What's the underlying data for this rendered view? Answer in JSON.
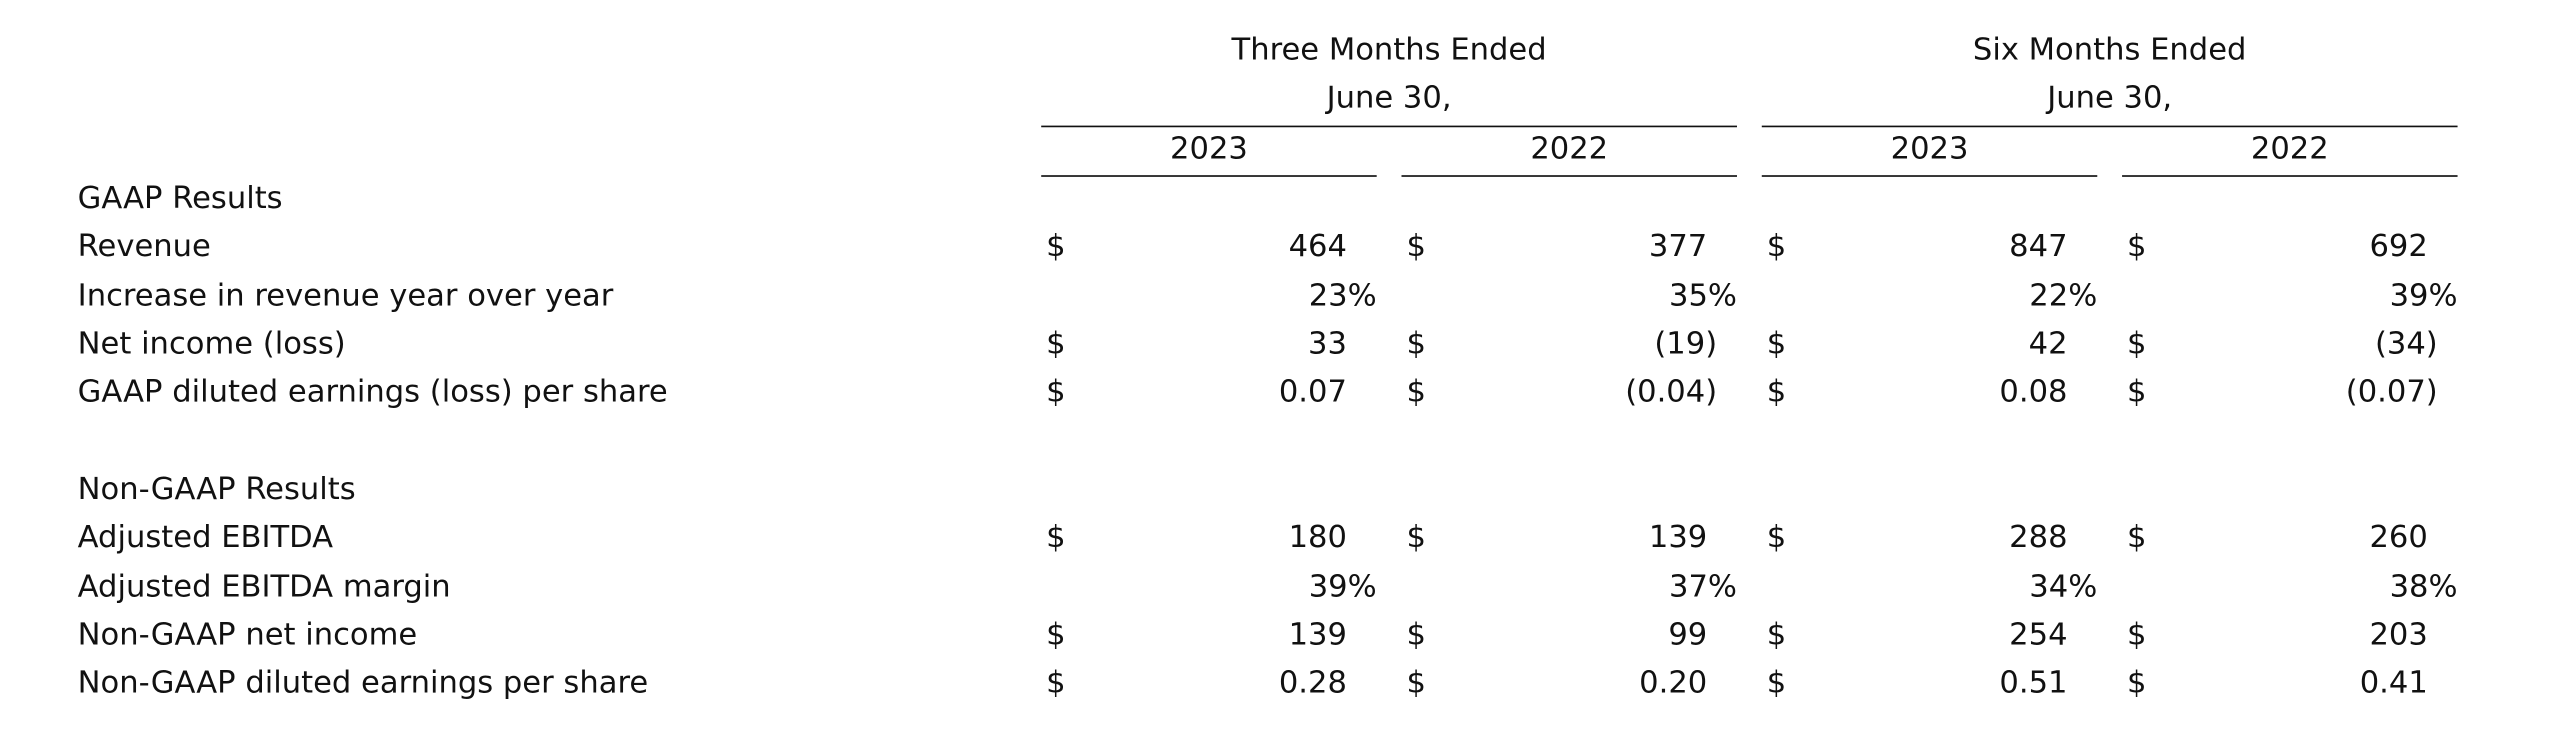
{
  "header": {
    "three_months_line1": "Three Months Ended",
    "three_months_line2": "June 30,",
    "six_months_line1": "Six Months Ended",
    "six_months_line2": "June 30,",
    "years": [
      "2023",
      "2022",
      "2023",
      "2022"
    ]
  },
  "sections": [
    {
      "title": "GAAP Results",
      "rows": [
        {
          "label": "Revenue",
          "cells": [
            {
              "dollar": "$",
              "value": "464"
            },
            {
              "dollar": "$",
              "value": "377"
            },
            {
              "dollar": "$",
              "value": "847"
            },
            {
              "dollar": "$",
              "value": "692"
            }
          ]
        },
        {
          "label": "Increase in revenue year over year",
          "cells": [
            {
              "dollar": "",
              "value": "23%"
            },
            {
              "dollar": "",
              "value": "35%"
            },
            {
              "dollar": "",
              "value": "22%"
            },
            {
              "dollar": "",
              "value": "39%"
            }
          ]
        },
        {
          "label": "Net income (loss)",
          "cells": [
            {
              "dollar": "$",
              "value": "33"
            },
            {
              "dollar": "$",
              "value": "(19)"
            },
            {
              "dollar": "$",
              "value": "42"
            },
            {
              "dollar": "$",
              "value": "(34)"
            }
          ]
        },
        {
          "label": "GAAP diluted earnings (loss) per share",
          "cells": [
            {
              "dollar": "$",
              "value": "0.07"
            },
            {
              "dollar": "$",
              "value": "(0.04)"
            },
            {
              "dollar": "$",
              "value": "0.08"
            },
            {
              "dollar": "$",
              "value": "(0.07)"
            }
          ]
        }
      ]
    },
    {
      "title": "Non-GAAP Results",
      "rows": [
        {
          "label": "Adjusted EBITDA",
          "cells": [
            {
              "dollar": "$",
              "value": "180"
            },
            {
              "dollar": "$",
              "value": "139"
            },
            {
              "dollar": "$",
              "value": "288"
            },
            {
              "dollar": "$",
              "value": "260"
            }
          ]
        },
        {
          "label": "Adjusted EBITDA margin",
          "cells": [
            {
              "dollar": "",
              "value": "39%"
            },
            {
              "dollar": "",
              "value": "37%"
            },
            {
              "dollar": "",
              "value": "34%"
            },
            {
              "dollar": "",
              "value": "38%"
            }
          ]
        },
        {
          "label": "Non-GAAP net income",
          "cells": [
            {
              "dollar": "$",
              "value": "139"
            },
            {
              "dollar": "$",
              "value": "99"
            },
            {
              "dollar": "$",
              "value": "254"
            },
            {
              "dollar": "$",
              "value": "203"
            }
          ]
        },
        {
          "label": "Non-GAAP diluted earnings per share",
          "cells": [
            {
              "dollar": "$",
              "value": "0.28"
            },
            {
              "dollar": "$",
              "value": "0.20"
            },
            {
              "dollar": "$",
              "value": "0.51"
            },
            {
              "dollar": "$",
              "value": "0.41"
            }
          ]
        }
      ]
    }
  ]
}
